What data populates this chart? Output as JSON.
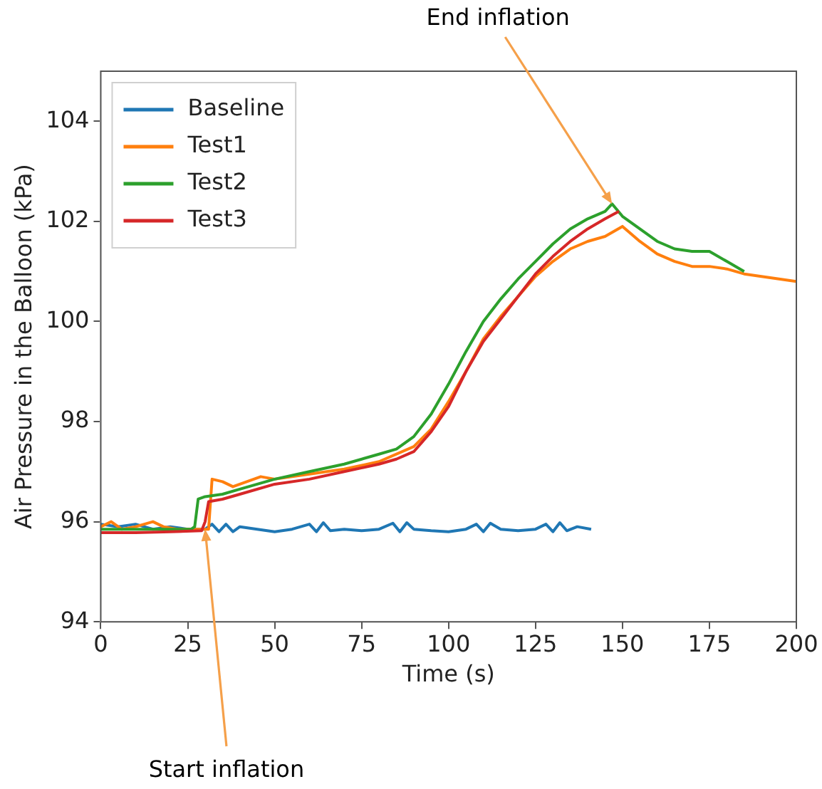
{
  "chart_data": {
    "type": "line",
    "xlabel": "Time (s)",
    "ylabel": "Air Pressure in the Balloon (kPa)",
    "xlim": [
      0,
      200
    ],
    "xticks": [
      0,
      25,
      50,
      75,
      100,
      125,
      150,
      175,
      200
    ],
    "ylim": [
      94,
      105
    ],
    "yticks": [
      94,
      96,
      98,
      100,
      102,
      104
    ],
    "grid": false,
    "legend": "top left",
    "marker": "none",
    "line_style": "solid",
    "annotations": [
      {
        "text": "End inflation",
        "x": 147,
        "y": 102.35
      },
      {
        "text": "Start inflation",
        "x": 30,
        "y": 95.85
      }
    ],
    "series": [
      {
        "name": "Baseline",
        "color": "#1f77b4",
        "x": [
          0,
          5,
          10,
          15,
          20,
          25,
          30,
          32,
          34,
          36,
          38,
          40,
          45,
          50,
          55,
          60,
          62,
          64,
          66,
          70,
          75,
          80,
          84,
          86,
          88,
          90,
          95,
          100,
          105,
          108,
          110,
          112,
          115,
          120,
          125,
          128,
          130,
          132,
          134,
          137,
          141
        ],
        "values": [
          95.95,
          95.9,
          95.95,
          95.85,
          95.9,
          95.85,
          95.85,
          95.95,
          95.8,
          95.95,
          95.8,
          95.9,
          95.85,
          95.8,
          95.85,
          95.95,
          95.8,
          95.98,
          95.82,
          95.85,
          95.82,
          95.85,
          95.97,
          95.8,
          95.98,
          95.85,
          95.82,
          95.8,
          95.85,
          95.95,
          95.8,
          95.97,
          95.85,
          95.82,
          95.85,
          95.95,
          95.8,
          95.98,
          95.82,
          95.9,
          95.85
        ]
      },
      {
        "name": "Test1",
        "color": "#ff7f0e",
        "x": [
          0,
          3,
          6,
          10,
          15,
          18,
          22,
          26,
          31,
          32,
          35,
          38,
          42,
          46,
          50,
          60,
          70,
          80,
          90,
          95,
          100,
          105,
          110,
          115,
          120,
          125,
          130,
          135,
          140,
          145,
          150,
          155,
          160,
          165,
          170,
          175,
          180,
          185,
          190,
          195,
          200
        ],
        "values": [
          95.9,
          96.0,
          95.85,
          95.9,
          96.0,
          95.9,
          95.85,
          95.85,
          95.85,
          96.85,
          96.8,
          96.7,
          96.8,
          96.9,
          96.85,
          96.95,
          97.05,
          97.2,
          97.5,
          97.85,
          98.4,
          99.0,
          99.65,
          100.1,
          100.5,
          100.9,
          101.2,
          101.45,
          101.6,
          101.7,
          101.9,
          101.6,
          101.35,
          101.2,
          101.1,
          101.1,
          101.05,
          100.95,
          100.9,
          100.85,
          100.8
        ]
      },
      {
        "name": "Test2",
        "color": "#2ca02c",
        "x": [
          0,
          10,
          20,
          26,
          27,
          28,
          30,
          35,
          40,
          50,
          60,
          70,
          80,
          85,
          90,
          95,
          100,
          105,
          110,
          115,
          120,
          125,
          130,
          135,
          140,
          145,
          147,
          150,
          155,
          160,
          165,
          170,
          175,
          180,
          185
        ],
        "values": [
          95.85,
          95.85,
          95.85,
          95.85,
          95.9,
          96.45,
          96.5,
          96.55,
          96.65,
          96.85,
          97.0,
          97.15,
          97.35,
          97.45,
          97.7,
          98.15,
          98.75,
          99.4,
          100.0,
          100.45,
          100.85,
          101.2,
          101.55,
          101.85,
          102.05,
          102.2,
          102.35,
          102.1,
          101.85,
          101.6,
          101.45,
          101.4,
          101.4,
          101.2,
          101.0
        ]
      },
      {
        "name": "Test3",
        "color": "#d62728",
        "x": [
          0,
          10,
          20,
          29,
          30,
          31,
          35,
          40,
          50,
          60,
          70,
          80,
          85,
          90,
          95,
          100,
          105,
          110,
          115,
          120,
          125,
          130,
          135,
          140,
          145,
          149
        ],
        "values": [
          95.78,
          95.78,
          95.8,
          95.82,
          96.0,
          96.4,
          96.45,
          96.55,
          96.75,
          96.85,
          97.0,
          97.15,
          97.25,
          97.4,
          97.8,
          98.3,
          99.0,
          99.6,
          100.05,
          100.5,
          100.95,
          101.3,
          101.6,
          101.85,
          102.05,
          102.2
        ]
      }
    ]
  }
}
